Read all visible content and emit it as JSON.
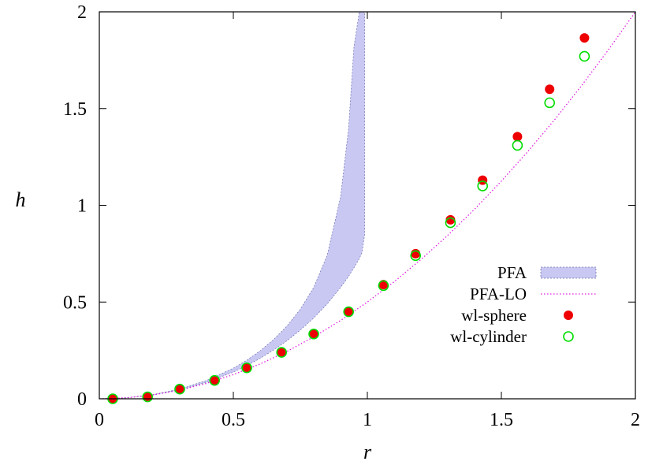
{
  "chart_data": {
    "type": "scatter",
    "title": "",
    "xlabel": "r",
    "ylabel": "h",
    "xlim": [
      0,
      2
    ],
    "ylim": [
      0,
      2
    ],
    "grid": false,
    "legend_position": "right",
    "x_ticks": [
      {
        "value": 0,
        "label": "0"
      },
      {
        "value": 0.5,
        "label": "0.5"
      },
      {
        "value": 1,
        "label": "1"
      },
      {
        "value": 1.5,
        "label": "1.5"
      },
      {
        "value": 2,
        "label": "2"
      }
    ],
    "y_ticks": [
      {
        "value": 0,
        "label": "0"
      },
      {
        "value": 0.5,
        "label": "0.5"
      },
      {
        "value": 1,
        "label": "1"
      },
      {
        "value": 1.5,
        "label": "1.5"
      },
      {
        "value": 2,
        "label": "2"
      }
    ],
    "series": [
      {
        "name": "PFA",
        "kind": "band",
        "color": "#c8c8f2",
        "edge_color": "#7070b0",
        "x": [
          0,
          0.1,
          0.2,
          0.3,
          0.4,
          0.5,
          0.55,
          0.6,
          0.65,
          0.7,
          0.75,
          0.8,
          0.85,
          0.9,
          0.93,
          0.95,
          0.97,
          0.98,
          0.99
        ],
        "lower": [
          0,
          0.005,
          0.02,
          0.046,
          0.085,
          0.138,
          0.171,
          0.209,
          0.252,
          0.3,
          0.355,
          0.418,
          0.49,
          0.575,
          0.633,
          0.677,
          0.725,
          0.755,
          0.85
        ],
        "upper": [
          0,
          0.005,
          0.022,
          0.05,
          0.095,
          0.158,
          0.199,
          0.248,
          0.306,
          0.376,
          0.463,
          0.576,
          0.741,
          1.043,
          1.398,
          1.82,
          2.0,
          2.0,
          2.0
        ]
      },
      {
        "name": "PFA-LO",
        "kind": "line",
        "color": "#e020e0",
        "style": "dotted",
        "x": [
          0,
          0.1,
          0.2,
          0.3,
          0.4,
          0.5,
          0.6,
          0.7,
          0.8,
          0.9,
          1.0,
          1.1,
          1.2,
          1.3,
          1.4,
          1.5,
          1.6,
          1.7,
          1.8,
          1.9,
          2.0
        ],
        "y": [
          0,
          0.005,
          0.02,
          0.045,
          0.08,
          0.125,
          0.18,
          0.245,
          0.32,
          0.405,
          0.5,
          0.605,
          0.72,
          0.845,
          0.98,
          1.125,
          1.28,
          1.445,
          1.62,
          1.805,
          2.0
        ]
      },
      {
        "name": "wl-sphere",
        "kind": "points",
        "marker": "filled-circle",
        "color": "#ee0000",
        "x": [
          0.05,
          0.18,
          0.3,
          0.43,
          0.55,
          0.68,
          0.8,
          0.93,
          1.06,
          1.18,
          1.31,
          1.43,
          1.56,
          1.68,
          1.81
        ],
        "y": [
          0.0,
          0.01,
          0.05,
          0.095,
          0.16,
          0.24,
          0.335,
          0.45,
          0.59,
          0.75,
          0.925,
          1.13,
          1.355,
          1.6,
          1.865
        ]
      },
      {
        "name": "wl-cylinder",
        "kind": "points",
        "marker": "open-circle",
        "color": "#00dd00",
        "x": [
          0.05,
          0.18,
          0.3,
          0.43,
          0.55,
          0.68,
          0.8,
          0.93,
          1.06,
          1.18,
          1.31,
          1.43,
          1.56,
          1.68,
          1.81
        ],
        "y": [
          0.0,
          0.01,
          0.05,
          0.095,
          0.16,
          0.24,
          0.335,
          0.45,
          0.585,
          0.74,
          0.91,
          1.1,
          1.31,
          1.53,
          1.77
        ]
      }
    ]
  }
}
